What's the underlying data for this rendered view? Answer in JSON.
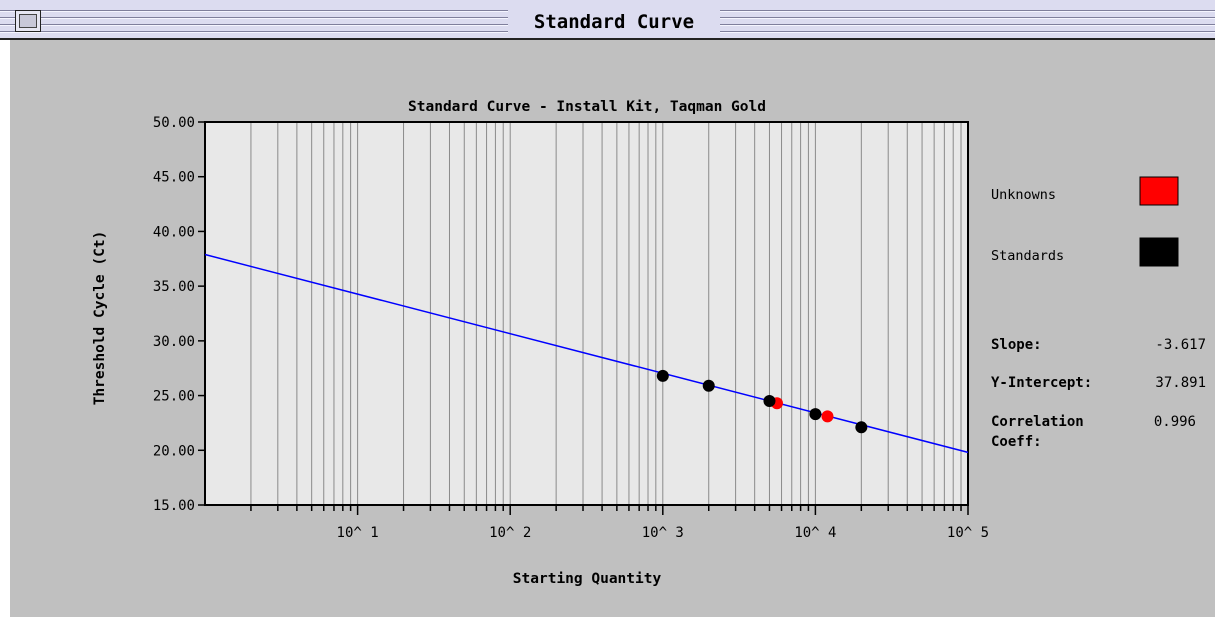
{
  "window": {
    "title": "Standard Curve"
  },
  "chart_data": {
    "type": "scatter",
    "title": "Standard Curve - Install Kit, Taqman Gold",
    "xlabel": "Starting Quantity",
    "ylabel": "Threshold Cycle (Ct)",
    "x_scale": "log10",
    "xlim": [
      1,
      100000
    ],
    "ylim": [
      15,
      50
    ],
    "x_ticks": [
      {
        "value": 10,
        "label": "10^ 1"
      },
      {
        "value": 100,
        "label": "10^ 2"
      },
      {
        "value": 1000,
        "label": "10^ 3"
      },
      {
        "value": 10000,
        "label": "10^ 4"
      },
      {
        "value": 100000,
        "label": "10^ 5"
      }
    ],
    "y_ticks": [
      {
        "value": 50,
        "label": "50.00"
      },
      {
        "value": 45,
        "label": "45.00"
      },
      {
        "value": 40,
        "label": "40.00"
      },
      {
        "value": 35,
        "label": "35.00"
      },
      {
        "value": 30,
        "label": "30.00"
      },
      {
        "value": 25,
        "label": "25.00"
      },
      {
        "value": 20,
        "label": "20.00"
      },
      {
        "value": 15,
        "label": "15.00"
      }
    ],
    "grid": true,
    "fit_line": {
      "slope": -3.617,
      "intercept": 37.891,
      "color": "#0000ff"
    },
    "series": [
      {
        "name": "Standards",
        "color": "#000000",
        "points": [
          {
            "x": 1000,
            "y": 26.8
          },
          {
            "x": 2000,
            "y": 25.9
          },
          {
            "x": 5000,
            "y": 24.5
          },
          {
            "x": 10000,
            "y": 23.3
          },
          {
            "x": 20000,
            "y": 22.1
          }
        ]
      },
      {
        "name": "Unknowns",
        "color": "#ff0000",
        "points": [
          {
            "x": 5600,
            "y": 24.3
          },
          {
            "x": 12000,
            "y": 23.1
          }
        ]
      }
    ],
    "plot_background": "#e8e8e8"
  },
  "legend": {
    "unknowns_label": "Unknowns",
    "unknowns_color": "#ff0000",
    "standards_label": "Standards",
    "standards_color": "#000000"
  },
  "stats": {
    "slope_label": "Slope:",
    "slope_value": "-3.617",
    "intercept_label": "Y-Intercept:",
    "intercept_value": "37.891",
    "correlation_label_line1": "Correlation",
    "correlation_label_line2": "Coeff:",
    "correlation_value": "0.996"
  }
}
